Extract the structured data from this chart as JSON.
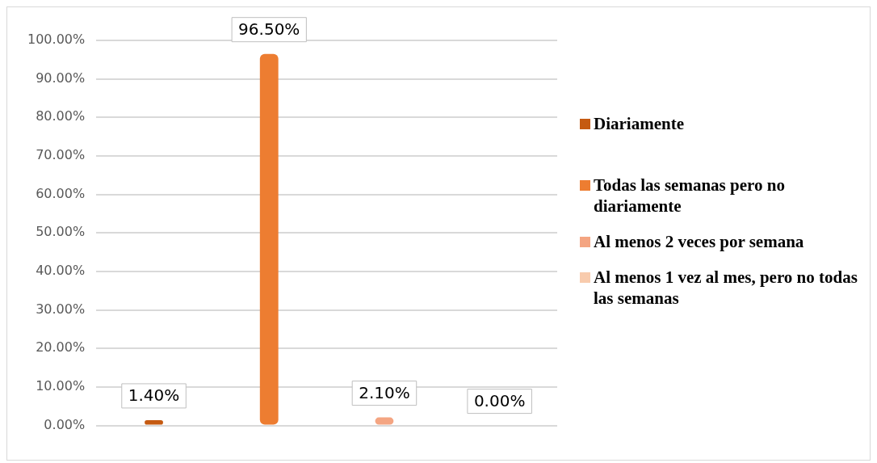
{
  "chart_data": {
    "type": "bar",
    "categories": [
      null,
      null,
      null,
      null
    ],
    "series": [
      {
        "name": "Diariamente",
        "color": "#c55a11",
        "values": [
          1.4,
          null,
          null,
          null
        ],
        "value_labels": [
          "1.40%",
          null,
          null,
          null
        ]
      },
      {
        "name": "Todas las semanas pero no diariamente",
        "color": "#ed7d31",
        "values": [
          null,
          96.5,
          null,
          null
        ],
        "value_labels": [
          null,
          "96.50%",
          null,
          null
        ]
      },
      {
        "name": "Al menos 2 veces por semana",
        "color": "#f4a582",
        "values": [
          null,
          null,
          2.1,
          null
        ],
        "value_labels": [
          null,
          null,
          "2.10%",
          null
        ]
      },
      {
        "name": "Al menos 1 vez al mes, pero no todas las semanas",
        "color": "#f8cbad",
        "values": [
          null,
          null,
          null,
          0
        ],
        "value_labels": [
          null,
          null,
          null,
          "0.00%"
        ]
      }
    ],
    "ylim": [
      0,
      100
    ],
    "yticks": [
      {
        "value": 0,
        "label": "0.00%"
      },
      {
        "value": 10,
        "label": "10.00%"
      },
      {
        "value": 20,
        "label": "20.00%"
      },
      {
        "value": 30,
        "label": "30.00%"
      },
      {
        "value": 40,
        "label": "40.00%"
      },
      {
        "value": 50,
        "label": "50.00%"
      },
      {
        "value": 60,
        "label": "60.00%"
      },
      {
        "value": 70,
        "label": "70.00%"
      },
      {
        "value": 80,
        "label": "80.00%"
      },
      {
        "value": 90,
        "label": "90.00%"
      },
      {
        "value": 100,
        "label": "100.00%"
      }
    ],
    "grid": "y",
    "legend": "right"
  }
}
